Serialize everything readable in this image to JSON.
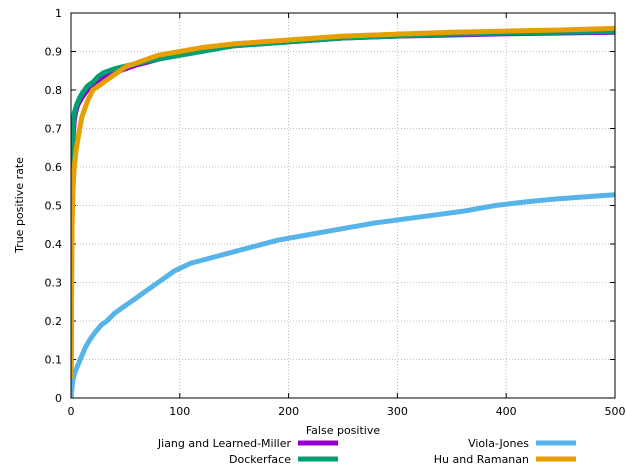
{
  "chart_data": {
    "type": "line",
    "title": "",
    "xlabel": "False positive",
    "ylabel": "True positive rate",
    "xlim": [
      0,
      500
    ],
    "ylim": [
      0,
      1
    ],
    "x_ticks": [
      0,
      100,
      200,
      300,
      400,
      500
    ],
    "y_ticks": [
      0,
      0.1,
      0.2,
      0.3,
      0.4,
      0.5,
      0.6,
      0.7,
      0.8,
      0.9,
      1
    ],
    "x_tick_labels": [
      "0",
      "100",
      "200",
      "300",
      "400",
      "500"
    ],
    "y_tick_labels": [
      "0",
      "0.1",
      "0.2",
      "0.3",
      "0.4",
      "0.5",
      "0.6",
      "0.7",
      "0.8",
      "0.9",
      "1"
    ],
    "grid": true,
    "legend_position": "bottom",
    "series": [
      {
        "name": "Jiang and Learned-Miller",
        "color": "#9400d3",
        "points": [
          [
            0,
            0
          ],
          [
            0.5,
            0.45
          ],
          [
            1,
            0.6
          ],
          [
            2,
            0.68
          ],
          [
            3,
            0.72
          ],
          [
            4,
            0.74
          ],
          [
            6,
            0.76
          ],
          [
            10,
            0.78
          ],
          [
            15,
            0.8
          ],
          [
            20,
            0.81
          ],
          [
            30,
            0.83
          ],
          [
            40,
            0.845
          ],
          [
            50,
            0.855
          ],
          [
            60,
            0.865
          ],
          [
            70,
            0.872
          ],
          [
            80,
            0.88
          ],
          [
            90,
            0.888
          ],
          [
            100,
            0.895
          ],
          [
            120,
            0.905
          ],
          [
            150,
            0.915
          ],
          [
            200,
            0.925
          ],
          [
            250,
            0.935
          ],
          [
            300,
            0.94
          ],
          [
            350,
            0.943
          ],
          [
            400,
            0.946
          ],
          [
            450,
            0.948
          ],
          [
            500,
            0.95
          ]
        ]
      },
      {
        "name": "Dockerface",
        "color": "#009e73",
        "points": [
          [
            0,
            0
          ],
          [
            0.2,
            0.4
          ],
          [
            0.5,
            0.55
          ],
          [
            1,
            0.65
          ],
          [
            2,
            0.7
          ],
          [
            3,
            0.74
          ],
          [
            5,
            0.76
          ],
          [
            8,
            0.78
          ],
          [
            10,
            0.79
          ],
          [
            15,
            0.81
          ],
          [
            20,
            0.82
          ],
          [
            25,
            0.835
          ],
          [
            30,
            0.845
          ],
          [
            40,
            0.855
          ],
          [
            50,
            0.862
          ],
          [
            70,
            0.875
          ],
          [
            100,
            0.89
          ],
          [
            120,
            0.9
          ],
          [
            150,
            0.915
          ],
          [
            200,
            0.925
          ],
          [
            250,
            0.935
          ],
          [
            300,
            0.94
          ],
          [
            350,
            0.945
          ],
          [
            400,
            0.948
          ],
          [
            450,
            0.95
          ],
          [
            500,
            0.952
          ]
        ]
      },
      {
        "name": "Viola-Jones",
        "color": "#56b4e9",
        "points": [
          [
            0,
            0
          ],
          [
            1,
            0.03
          ],
          [
            2,
            0.05
          ],
          [
            4,
            0.07
          ],
          [
            7,
            0.09
          ],
          [
            10,
            0.11
          ],
          [
            13,
            0.13
          ],
          [
            17,
            0.15
          ],
          [
            22,
            0.17
          ],
          [
            28,
            0.19
          ],
          [
            33,
            0.2
          ],
          [
            40,
            0.22
          ],
          [
            50,
            0.24
          ],
          [
            60,
            0.26
          ],
          [
            70,
            0.28
          ],
          [
            80,
            0.3
          ],
          [
            90,
            0.32
          ],
          [
            95,
            0.33
          ],
          [
            110,
            0.35
          ],
          [
            130,
            0.365
          ],
          [
            150,
            0.38
          ],
          [
            170,
            0.395
          ],
          [
            190,
            0.41
          ],
          [
            220,
            0.425
          ],
          [
            250,
            0.44
          ],
          [
            280,
            0.455
          ],
          [
            320,
            0.47
          ],
          [
            360,
            0.485
          ],
          [
            390,
            0.5
          ],
          [
            420,
            0.51
          ],
          [
            450,
            0.518
          ],
          [
            480,
            0.524
          ],
          [
            500,
            0.528
          ]
        ]
      },
      {
        "name": "Hu and Ramanan",
        "color": "#e69f00",
        "points": [
          [
            0,
            0.05
          ],
          [
            1,
            0.45
          ],
          [
            2,
            0.55
          ],
          [
            3,
            0.6
          ],
          [
            5,
            0.65
          ],
          [
            8,
            0.7
          ],
          [
            10,
            0.73
          ],
          [
            15,
            0.77
          ],
          [
            20,
            0.8
          ],
          [
            25,
            0.81
          ],
          [
            30,
            0.82
          ],
          [
            40,
            0.84
          ],
          [
            50,
            0.86
          ],
          [
            60,
            0.87
          ],
          [
            70,
            0.88
          ],
          [
            80,
            0.89
          ],
          [
            100,
            0.9
          ],
          [
            120,
            0.91
          ],
          [
            150,
            0.92
          ],
          [
            200,
            0.93
          ],
          [
            250,
            0.94
          ],
          [
            300,
            0.945
          ],
          [
            350,
            0.95
          ],
          [
            400,
            0.953
          ],
          [
            450,
            0.956
          ],
          [
            500,
            0.96
          ]
        ]
      }
    ]
  }
}
